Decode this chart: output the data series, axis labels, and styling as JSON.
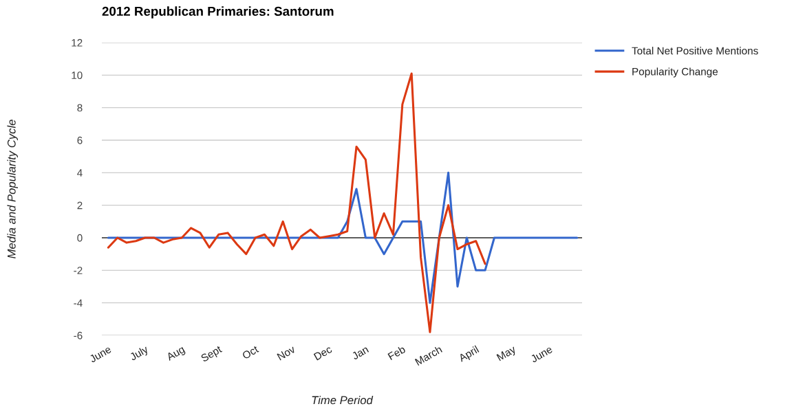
{
  "chart_data": {
    "type": "line",
    "title": "2012 Republican Primaries: Santorum",
    "xlabel": "Time Period",
    "ylabel": "Media and Popularity Cycle",
    "categories": [
      "June",
      null,
      null,
      null,
      "July",
      null,
      null,
      null,
      "Aug",
      null,
      null,
      null,
      "Sept",
      null,
      null,
      null,
      "Oct",
      null,
      null,
      null,
      "Nov",
      null,
      null,
      null,
      "Dec",
      null,
      null,
      null,
      "Jan",
      null,
      null,
      null,
      "Feb",
      null,
      null,
      null,
      "March",
      null,
      null,
      null,
      "April",
      null,
      null,
      null,
      "May",
      null,
      null,
      null,
      "June",
      null,
      null,
      null
    ],
    "series": [
      {
        "name": "Total Net Positive Mentions",
        "color": "#3366cc",
        "values": [
          0,
          0,
          0,
          0,
          0,
          0,
          0,
          0,
          0,
          0,
          0,
          0,
          0,
          0,
          0,
          0,
          0,
          0,
          0,
          0,
          0,
          0,
          0,
          0,
          0,
          0,
          1,
          3,
          0,
          0,
          -1,
          0,
          1,
          1,
          1,
          -4,
          0,
          4,
          -3,
          0,
          -2,
          -2,
          0,
          0,
          0,
          0,
          0,
          0,
          0,
          0,
          0,
          0
        ]
      },
      {
        "name": "Popularity Change",
        "color": "#dc3912",
        "values": [
          -0.6,
          0,
          -0.3,
          -0.2,
          0,
          0,
          -0.3,
          -0.1,
          0,
          0.6,
          0.3,
          -0.6,
          0.2,
          0.3,
          -0.4,
          -1,
          0,
          0.2,
          -0.5,
          1,
          -0.7,
          0.1,
          0.5,
          0,
          0.1,
          0.2,
          0.4,
          5.6,
          4.8,
          0,
          1.5,
          0.2,
          8.2,
          10.1,
          -1.2,
          -5.8,
          0,
          2,
          -0.7,
          -0.4,
          -0.2,
          -1.6,
          null,
          null,
          null,
          null,
          null,
          null,
          null,
          null,
          null,
          null
        ]
      }
    ],
    "ylim": [
      -6,
      12
    ],
    "yticks": [
      -6,
      -4,
      -2,
      0,
      2,
      4,
      6,
      8,
      10,
      12
    ],
    "grid": "y",
    "legend": "right",
    "line_style": "solid",
    "ref_lines": [
      {
        "axis": "y",
        "value": 0,
        "color": "#333333"
      }
    ]
  }
}
